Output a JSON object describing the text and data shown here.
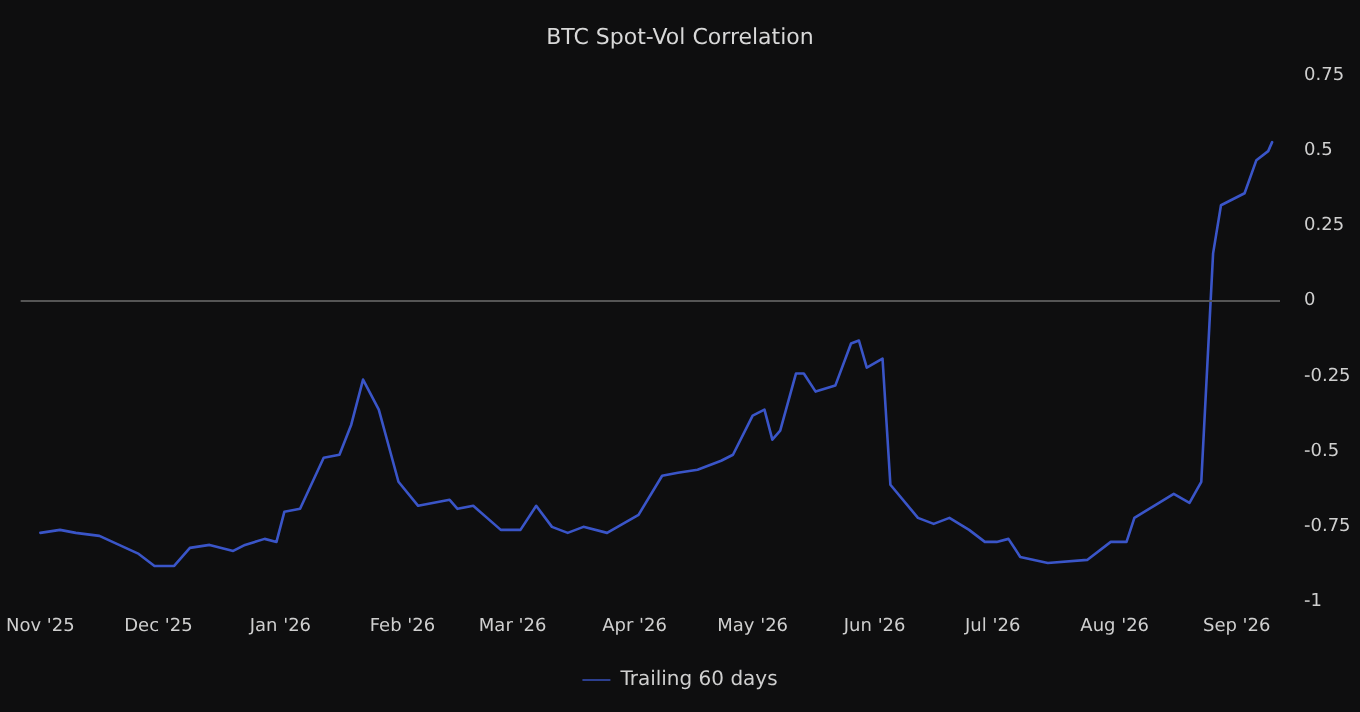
{
  "chart_data": {
    "type": "line",
    "title": "BTC Spot-Vol Correlation",
    "x": [
      "2025-11-01",
      "2025-11-06",
      "2025-11-10",
      "2025-11-16",
      "2025-11-21",
      "2025-11-26",
      "2025-11-30",
      "2025-12-05",
      "2025-12-09",
      "2025-12-14",
      "2025-12-20",
      "2025-12-23",
      "2025-12-28",
      "2025-12-31",
      "2026-01-02",
      "2026-01-06",
      "2026-01-12",
      "2026-01-16",
      "2026-01-19",
      "2026-01-22",
      "2026-01-26",
      "2026-01-31",
      "2026-02-05",
      "2026-02-13",
      "2026-02-15",
      "2026-02-19",
      "2026-02-26",
      "2026-03-03",
      "2026-03-07",
      "2026-03-11",
      "2026-03-15",
      "2026-03-19",
      "2026-03-25",
      "2026-04-02",
      "2026-04-08",
      "2026-04-12",
      "2026-04-17",
      "2026-04-23",
      "2026-04-26",
      "2026-05-01",
      "2026-05-04",
      "2026-05-06",
      "2026-05-08",
      "2026-05-12",
      "2026-05-14",
      "2026-05-17",
      "2026-05-22",
      "2026-05-26",
      "2026-05-28",
      "2026-05-30",
      "2026-06-03",
      "2026-06-05",
      "2026-06-12",
      "2026-06-16",
      "2026-06-20",
      "2026-06-25",
      "2026-06-29",
      "2026-07-02",
      "2026-07-05",
      "2026-07-08",
      "2026-07-15",
      "2026-07-25",
      "2026-07-31",
      "2026-08-04",
      "2026-08-06",
      "2026-08-11",
      "2026-08-16",
      "2026-08-20",
      "2026-08-23",
      "2026-08-26",
      "2026-08-28",
      "2026-09-03",
      "2026-09-06",
      "2026-09-09",
      "2026-09-10"
    ],
    "series": [
      {
        "name": "Trailing 60 days",
        "color": "#3a55c8",
        "values": [
          -0.77,
          -0.76,
          -0.77,
          -0.78,
          -0.81,
          -0.84,
          -0.88,
          -0.88,
          -0.82,
          -0.81,
          -0.83,
          -0.81,
          -0.79,
          -0.8,
          -0.7,
          -0.69,
          -0.52,
          -0.51,
          -0.41,
          -0.26,
          -0.36,
          -0.6,
          -0.68,
          -0.66,
          -0.69,
          -0.68,
          -0.76,
          -0.76,
          -0.68,
          -0.75,
          -0.77,
          -0.75,
          -0.77,
          -0.71,
          -0.58,
          -0.57,
          -0.56,
          -0.53,
          -0.51,
          -0.38,
          -0.36,
          -0.46,
          -0.43,
          -0.24,
          -0.24,
          -0.3,
          -0.28,
          -0.14,
          -0.13,
          -0.22,
          -0.19,
          -0.61,
          -0.72,
          -0.74,
          -0.72,
          -0.76,
          -0.8,
          -0.8,
          -0.79,
          -0.85,
          -0.87,
          -0.86,
          -0.8,
          -0.8,
          -0.72,
          -0.68,
          -0.64,
          -0.67,
          -0.6,
          0.16,
          0.32,
          0.36,
          0.47,
          0.5,
          0.53
        ]
      }
    ],
    "xlim": [
      "2025-10-27",
      "2026-09-12"
    ],
    "xticks": [
      {
        "value": "2025-11",
        "label": "Nov '25"
      },
      {
        "value": "2025-12",
        "label": "Dec '25"
      },
      {
        "value": "2026-01",
        "label": "Jan '26"
      },
      {
        "value": "2026-02",
        "label": "Feb '26"
      },
      {
        "value": "2026-03",
        "label": "Mar '26"
      },
      {
        "value": "2026-04",
        "label": "Apr '26"
      },
      {
        "value": "2026-05",
        "label": "May '26"
      },
      {
        "value": "2026-06",
        "label": "Jun '26"
      },
      {
        "value": "2026-07",
        "label": "Jul '26"
      },
      {
        "value": "2026-08",
        "label": "Aug '26"
      },
      {
        "value": "2026-09",
        "label": "Sep '26"
      }
    ],
    "ylim": [
      -1,
      0.75
    ],
    "yticks": [
      -1,
      -0.75,
      -0.5,
      -0.25,
      0,
      0.25,
      0.5,
      0.75
    ],
    "ref_lines": [
      {
        "axis": "y",
        "value": 0,
        "color": "#555555"
      }
    ],
    "legend": "bottom",
    "marker": "none",
    "line_style": "solid",
    "grid": false
  }
}
